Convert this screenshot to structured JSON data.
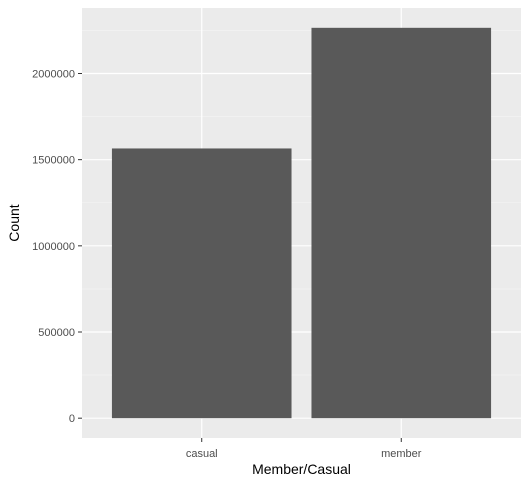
{
  "chart_data": {
    "type": "bar",
    "categories": [
      "casual",
      "member"
    ],
    "values": [
      1565000,
      2265000
    ],
    "xlabel": "Member/Casual",
    "ylabel": "Count",
    "ylim": [
      -115000,
      2380000
    ],
    "yticks": [
      0,
      500000,
      1000000,
      1500000,
      2000000
    ],
    "ytick_labels": [
      "0",
      "500000",
      "1000000",
      "1500000",
      "2000000"
    ],
    "grid": true,
    "legend": "none",
    "colors": {
      "bar": "#595959",
      "panel": "#ebebeb",
      "grid_major": "#ffffff",
      "grid_minor": "#f5f5f5",
      "tick_text": "#4d4d4d"
    }
  }
}
